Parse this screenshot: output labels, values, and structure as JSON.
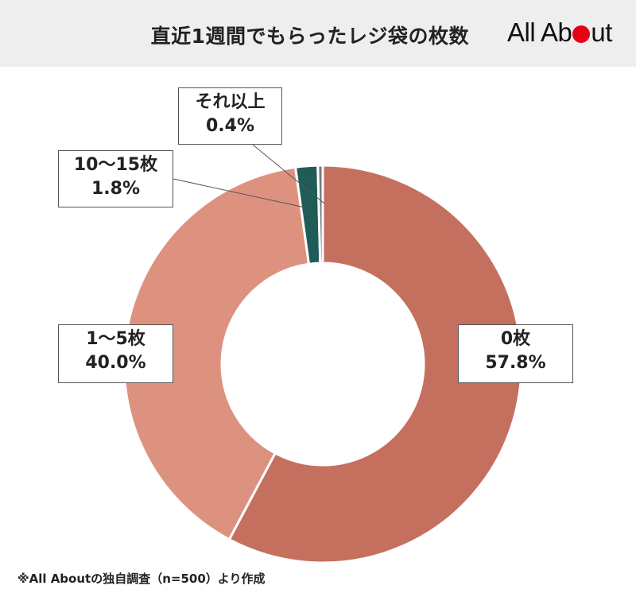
{
  "header": {
    "title": "直近1週間でもらったレジ袋の枚数",
    "brand": {
      "text_before": "All Ab",
      "text_after": "ut",
      "dot_color": "#e60012"
    }
  },
  "chart_data": {
    "type": "pie",
    "donut": true,
    "title": "直近1週間でもらったレジ袋の枚数",
    "categories": [
      "0枚",
      "1〜5枚",
      "10〜15枚",
      "それ以上"
    ],
    "values": [
      57.8,
      40.0,
      1.8,
      0.4
    ],
    "value_labels": [
      "57.8%",
      "40.0%",
      "1.8%",
      "0.4%"
    ],
    "colors": [
      "#c5705f",
      "#dd9280",
      "#1f5c58",
      "#7a7a7a"
    ],
    "start": "12 o'clock",
    "direction": "clockwise"
  },
  "footer": {
    "note": "※All Aboutの独自調査（n=500）より作成"
  }
}
